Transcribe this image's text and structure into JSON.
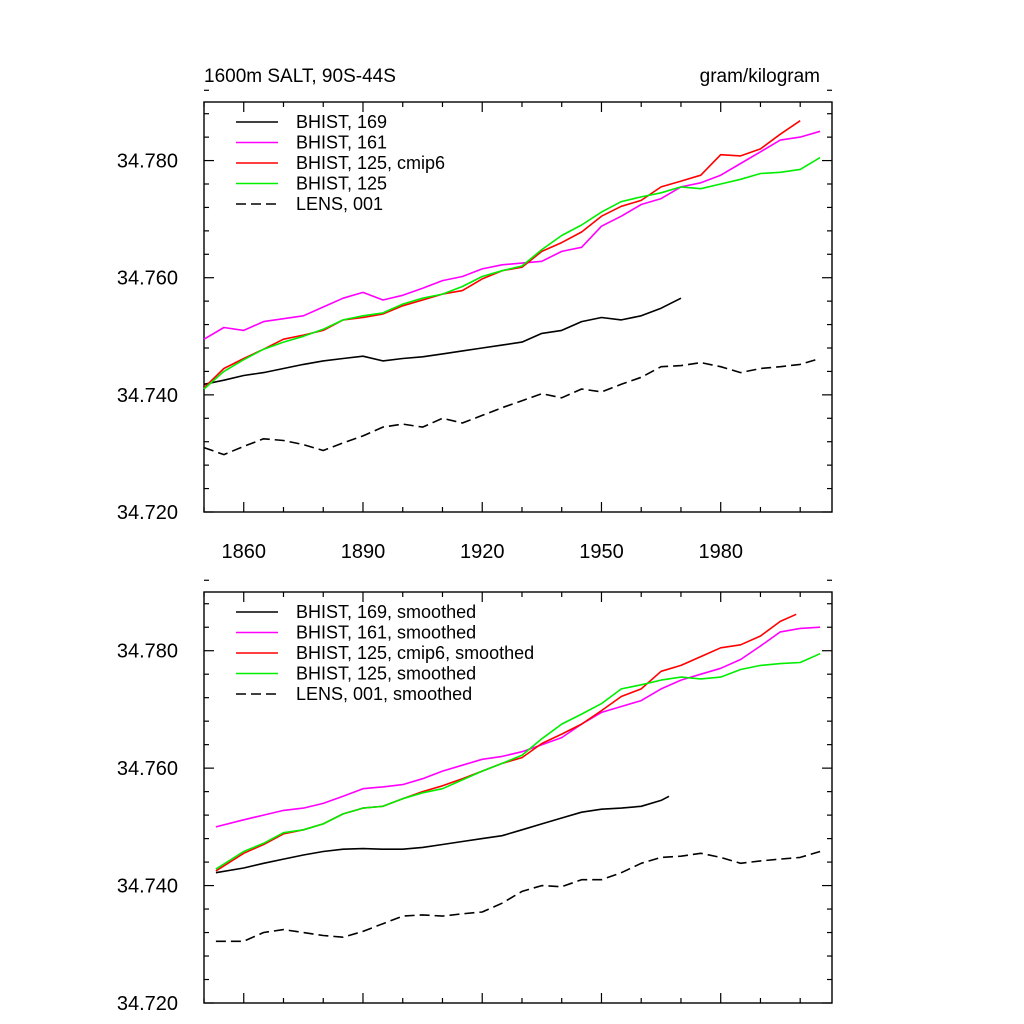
{
  "figure": {
    "title_left": "1600m SALT, 90S-44S",
    "title_right": "gram/kilogram"
  },
  "chart_data": [
    {
      "type": "line",
      "panel": "top",
      "title": "1600m SALT, 90S-44S",
      "units": "gram/kilogram",
      "xlim": [
        1850,
        2008
      ],
      "ylim": [
        34.72,
        34.79
      ],
      "xticks": [
        1860,
        1890,
        1920,
        1950,
        1980
      ],
      "xtick_labels": [
        "1860",
        "1890",
        "1920",
        "1950",
        "1980"
      ],
      "yticks": [
        34.72,
        34.74,
        34.76,
        34.78
      ],
      "ytick_labels": [
        "34.720",
        "34.740",
        "34.760",
        "34.780"
      ],
      "legend_position": "top-left",
      "series": [
        {
          "name": "BHIST, 169",
          "color": "#000000",
          "dash": "solid",
          "x": [
            1850,
            1855,
            1860,
            1865,
            1870,
            1875,
            1880,
            1885,
            1890,
            1895,
            1900,
            1905,
            1910,
            1915,
            1920,
            1925,
            1930,
            1935,
            1940,
            1945,
            1950,
            1955,
            1960,
            1965,
            1970
          ],
          "y": [
            34.7418,
            34.7425,
            34.7433,
            34.7438,
            34.7445,
            34.7452,
            34.7458,
            34.7462,
            34.7466,
            34.7458,
            34.7462,
            34.7465,
            34.747,
            34.7475,
            34.748,
            34.7485,
            34.749,
            34.7505,
            34.751,
            34.7525,
            34.7532,
            34.7528,
            34.7535,
            34.7548,
            34.7565
          ]
        },
        {
          "name": "BHIST, 161",
          "color": "#ff00ff",
          "dash": "solid",
          "x": [
            1850,
            1855,
            1860,
            1865,
            1870,
            1875,
            1880,
            1885,
            1890,
            1895,
            1900,
            1905,
            1910,
            1915,
            1920,
            1925,
            1930,
            1935,
            1940,
            1945,
            1950,
            1955,
            1960,
            1965,
            1970,
            1975,
            1980,
            1985,
            1990,
            1995,
            2000,
            2005
          ],
          "y": [
            34.7495,
            34.7515,
            34.751,
            34.7525,
            34.753,
            34.7535,
            34.755,
            34.7565,
            34.7575,
            34.7562,
            34.757,
            34.7582,
            34.7595,
            34.7602,
            34.7615,
            34.7622,
            34.7625,
            34.7628,
            34.7645,
            34.7652,
            34.7688,
            34.7705,
            34.7725,
            34.7735,
            34.7755,
            34.7762,
            34.7775,
            34.7795,
            34.7815,
            34.7835,
            34.784,
            34.785
          ]
        },
        {
          "name": "BHIST, 125, cmip6",
          "color": "#ff0000",
          "dash": "solid",
          "x": [
            1850,
            1855,
            1860,
            1865,
            1870,
            1875,
            1880,
            1885,
            1890,
            1895,
            1900,
            1905,
            1910,
            1915,
            1920,
            1925,
            1930,
            1935,
            1940,
            1945,
            1950,
            1955,
            1960,
            1965,
            1970,
            1975,
            1980,
            1985,
            1990,
            1995,
            2000
          ],
          "y": [
            34.7412,
            34.7445,
            34.7462,
            34.7478,
            34.7495,
            34.7502,
            34.751,
            34.7528,
            34.7532,
            34.7538,
            34.7552,
            34.7562,
            34.7572,
            34.7578,
            34.7598,
            34.7612,
            34.7618,
            34.7645,
            34.766,
            34.7678,
            34.7705,
            34.7722,
            34.7732,
            34.7755,
            34.7765,
            34.7775,
            34.781,
            34.7808,
            34.782,
            34.7845,
            34.7868
          ]
        },
        {
          "name": "BHIST, 125",
          "color": "#00ee00",
          "dash": "solid",
          "x": [
            1850,
            1855,
            1860,
            1865,
            1870,
            1875,
            1880,
            1885,
            1890,
            1895,
            1900,
            1905,
            1910,
            1915,
            1920,
            1925,
            1930,
            1935,
            1940,
            1945,
            1950,
            1955,
            1960,
            1965,
            1970,
            1975,
            1980,
            1985,
            1990,
            1995,
            2000,
            2005
          ],
          "y": [
            34.741,
            34.744,
            34.746,
            34.7478,
            34.749,
            34.75,
            34.7512,
            34.7528,
            34.7535,
            34.754,
            34.7555,
            34.7565,
            34.7572,
            34.7585,
            34.7602,
            34.7612,
            34.762,
            34.7648,
            34.7672,
            34.769,
            34.7712,
            34.773,
            34.7738,
            34.7745,
            34.7755,
            34.7752,
            34.776,
            34.7768,
            34.7778,
            34.778,
            34.7785,
            34.7805
          ]
        },
        {
          "name": "LENS, 001",
          "color": "#000000",
          "dash": "dashed",
          "x": [
            1850,
            1855,
            1860,
            1865,
            1870,
            1875,
            1880,
            1885,
            1890,
            1895,
            1900,
            1905,
            1910,
            1915,
            1920,
            1925,
            1930,
            1935,
            1940,
            1945,
            1950,
            1955,
            1960,
            1965,
            1970,
            1975,
            1980,
            1985,
            1990,
            1995,
            2000,
            2005
          ],
          "y": [
            34.731,
            34.7298,
            34.7312,
            34.7325,
            34.7322,
            34.7315,
            34.7305,
            34.7318,
            34.733,
            34.7345,
            34.735,
            34.7345,
            34.736,
            34.7352,
            34.7365,
            34.7378,
            34.739,
            34.7402,
            34.7395,
            34.741,
            34.7405,
            34.7418,
            34.743,
            34.7448,
            34.745,
            34.7455,
            34.7448,
            34.7438,
            34.7445,
            34.7448,
            34.7452,
            34.7462
          ]
        }
      ]
    },
    {
      "type": "line",
      "panel": "bottom",
      "title": "",
      "xlim": [
        1850,
        2008
      ],
      "ylim": [
        34.72,
        34.79
      ],
      "xticks": [
        1860,
        1890,
        1920,
        1950,
        1980
      ],
      "yticks": [
        34.72,
        34.74,
        34.76,
        34.78
      ],
      "ytick_labels": [
        "34.720",
        "34.740",
        "34.760",
        "34.780"
      ],
      "legend_position": "top-left",
      "series": [
        {
          "name": "BHIST, 169, smoothed",
          "color": "#000000",
          "dash": "solid",
          "x": [
            1853,
            1860,
            1865,
            1870,
            1875,
            1880,
            1885,
            1890,
            1895,
            1900,
            1905,
            1910,
            1915,
            1920,
            1925,
            1930,
            1935,
            1940,
            1945,
            1950,
            1955,
            1960,
            1965,
            1967
          ],
          "y": [
            34.7422,
            34.743,
            34.7438,
            34.7445,
            34.7452,
            34.7458,
            34.7462,
            34.7463,
            34.7462,
            34.7462,
            34.7465,
            34.747,
            34.7475,
            34.748,
            34.7485,
            34.7495,
            34.7505,
            34.7515,
            34.7525,
            34.753,
            34.7532,
            34.7535,
            34.7545,
            34.7552
          ]
        },
        {
          "name": "BHIST, 161, smoothed",
          "color": "#ff00ff",
          "dash": "solid",
          "x": [
            1853,
            1860,
            1865,
            1870,
            1875,
            1880,
            1885,
            1890,
            1895,
            1900,
            1905,
            1910,
            1915,
            1920,
            1925,
            1930,
            1935,
            1940,
            1945,
            1950,
            1955,
            1960,
            1965,
            1970,
            1975,
            1980,
            1985,
            1990,
            1995,
            2000,
            2005
          ],
          "y": [
            34.75,
            34.7512,
            34.752,
            34.7528,
            34.7532,
            34.754,
            34.7552,
            34.7565,
            34.7568,
            34.7572,
            34.7582,
            34.7595,
            34.7605,
            34.7615,
            34.762,
            34.7628,
            34.764,
            34.7652,
            34.7675,
            34.7695,
            34.7705,
            34.7715,
            34.7735,
            34.775,
            34.776,
            34.777,
            34.7785,
            34.7808,
            34.7832,
            34.7838,
            34.784
          ]
        },
        {
          "name": "BHIST, 125, cmip6, smoothed",
          "color": "#ff0000",
          "dash": "solid",
          "x": [
            1853,
            1860,
            1865,
            1870,
            1875,
            1880,
            1885,
            1890,
            1895,
            1900,
            1905,
            1910,
            1915,
            1920,
            1925,
            1930,
            1935,
            1940,
            1945,
            1950,
            1955,
            1960,
            1965,
            1970,
            1975,
            1980,
            1985,
            1990,
            1995,
            1999
          ],
          "y": [
            34.7425,
            34.7455,
            34.747,
            34.7488,
            34.7495,
            34.7505,
            34.7522,
            34.7532,
            34.7535,
            34.7548,
            34.756,
            34.757,
            34.7582,
            34.7595,
            34.7608,
            34.7618,
            34.7642,
            34.7658,
            34.7675,
            34.7698,
            34.7722,
            34.7735,
            34.7765,
            34.7775,
            34.779,
            34.7805,
            34.781,
            34.7825,
            34.785,
            34.7862
          ]
        },
        {
          "name": "BHIST, 125, smoothed",
          "color": "#00ee00",
          "dash": "solid",
          "x": [
            1853,
            1860,
            1865,
            1870,
            1875,
            1880,
            1885,
            1890,
            1895,
            1900,
            1905,
            1910,
            1915,
            1920,
            1925,
            1930,
            1935,
            1940,
            1945,
            1950,
            1955,
            1960,
            1965,
            1970,
            1975,
            1980,
            1985,
            1990,
            1995,
            2000,
            2005
          ],
          "y": [
            34.7428,
            34.7458,
            34.7472,
            34.749,
            34.7495,
            34.7505,
            34.7522,
            34.7532,
            34.7535,
            34.7548,
            34.7558,
            34.7565,
            34.758,
            34.7595,
            34.7608,
            34.7622,
            34.765,
            34.7675,
            34.7692,
            34.771,
            34.7735,
            34.7742,
            34.775,
            34.7755,
            34.7752,
            34.7755,
            34.7768,
            34.7775,
            34.7778,
            34.778,
            34.7795
          ]
        },
        {
          "name": "LENS, 001, smoothed",
          "color": "#000000",
          "dash": "dashed",
          "x": [
            1853,
            1860,
            1865,
            1870,
            1875,
            1880,
            1885,
            1890,
            1895,
            1900,
            1905,
            1910,
            1915,
            1920,
            1925,
            1930,
            1935,
            1940,
            1945,
            1950,
            1955,
            1960,
            1965,
            1970,
            1975,
            1980,
            1985,
            1990,
            1995,
            2000,
            2005
          ],
          "y": [
            34.7305,
            34.7305,
            34.732,
            34.7325,
            34.732,
            34.7315,
            34.7312,
            34.7322,
            34.7335,
            34.7348,
            34.735,
            34.7348,
            34.7352,
            34.7355,
            34.737,
            34.739,
            34.74,
            34.7398,
            34.741,
            34.741,
            34.7422,
            34.7438,
            34.7448,
            34.745,
            34.7455,
            34.7448,
            34.7438,
            34.7442,
            34.7445,
            34.7448,
            34.7458
          ]
        }
      ]
    }
  ]
}
